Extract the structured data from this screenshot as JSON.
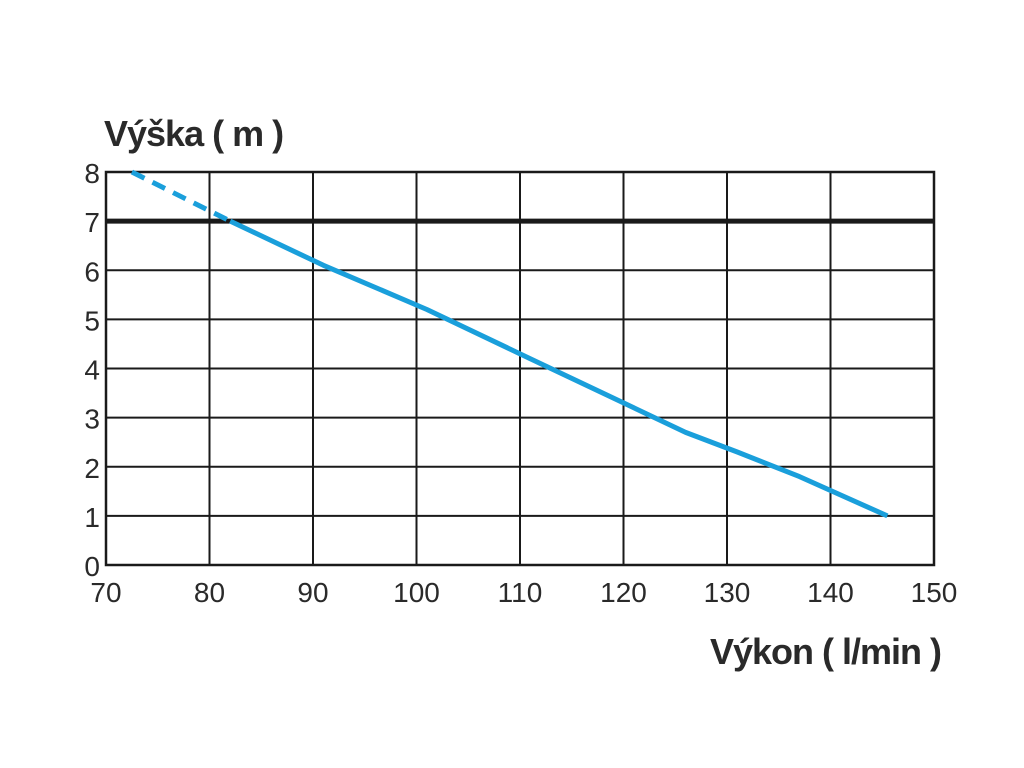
{
  "chart_data": {
    "type": "line",
    "ylabel": "Výška ( m )",
    "xlabel": "Výkon ( l/min )",
    "xlim": [
      70,
      150
    ],
    "ylim": [
      0,
      8
    ],
    "x_ticks": [
      "70",
      "80",
      "90",
      "100",
      "110",
      "120",
      "130",
      "140",
      "150"
    ],
    "y_ticks": [
      "0",
      "1",
      "2",
      "3",
      "4",
      "5",
      "6",
      "7",
      "8"
    ],
    "grid": true,
    "series": [
      {
        "color": "#1a9fdb",
        "style": "dashed",
        "points": [
          [
            72.5,
            8.0
          ],
          [
            82.0,
            7.0
          ]
        ]
      },
      {
        "color": "#1a9fdb",
        "style": "solid",
        "points": [
          [
            82.0,
            7.0
          ],
          [
            91,
            6.1
          ],
          [
            101,
            5.2
          ],
          [
            111,
            4.2
          ],
          [
            121,
            3.2
          ],
          [
            126,
            2.7
          ],
          [
            131,
            2.3
          ],
          [
            137,
            1.8
          ],
          [
            145.5,
            1.0
          ]
        ]
      }
    ],
    "reference_lines": [
      {
        "axis": "y",
        "value": 7,
        "color": "#1a1a1a"
      }
    ]
  }
}
